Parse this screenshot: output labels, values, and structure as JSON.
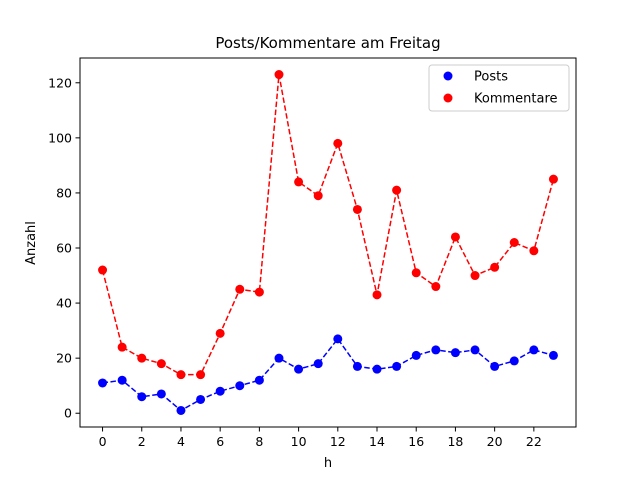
{
  "chart_data": {
    "type": "line",
    "title": "Posts/Kommentare am Freitag",
    "xlabel": "h",
    "ylabel": "Anzahl",
    "xlim": [
      -1.15,
      24.15
    ],
    "ylim": [
      -5,
      129
    ],
    "xticks": [
      0,
      2,
      4,
      6,
      8,
      10,
      12,
      14,
      16,
      18,
      20,
      22
    ],
    "yticks": [
      0,
      20,
      40,
      60,
      80,
      100,
      120
    ],
    "grid": false,
    "legend": "top-right",
    "x": [
      0,
      1,
      2,
      3,
      4,
      5,
      6,
      7,
      8,
      9,
      10,
      11,
      12,
      13,
      14,
      15,
      16,
      17,
      18,
      19,
      20,
      21,
      22,
      23
    ],
    "series": [
      {
        "name": "Posts",
        "color": "#0000ff",
        "values": [
          11,
          12,
          6,
          7,
          1,
          5,
          8,
          10,
          12,
          20,
          16,
          18,
          27,
          17,
          16,
          17,
          21,
          23,
          22,
          23,
          17,
          19,
          23,
          21
        ]
      },
      {
        "name": "Kommentare",
        "color": "#ff0000",
        "values": [
          52,
          24,
          20,
          18,
          14,
          14,
          29,
          45,
          44,
          123,
          84,
          79,
          98,
          74,
          43,
          81,
          51,
          46,
          64,
          50,
          53,
          62,
          59,
          85
        ]
      }
    ]
  }
}
